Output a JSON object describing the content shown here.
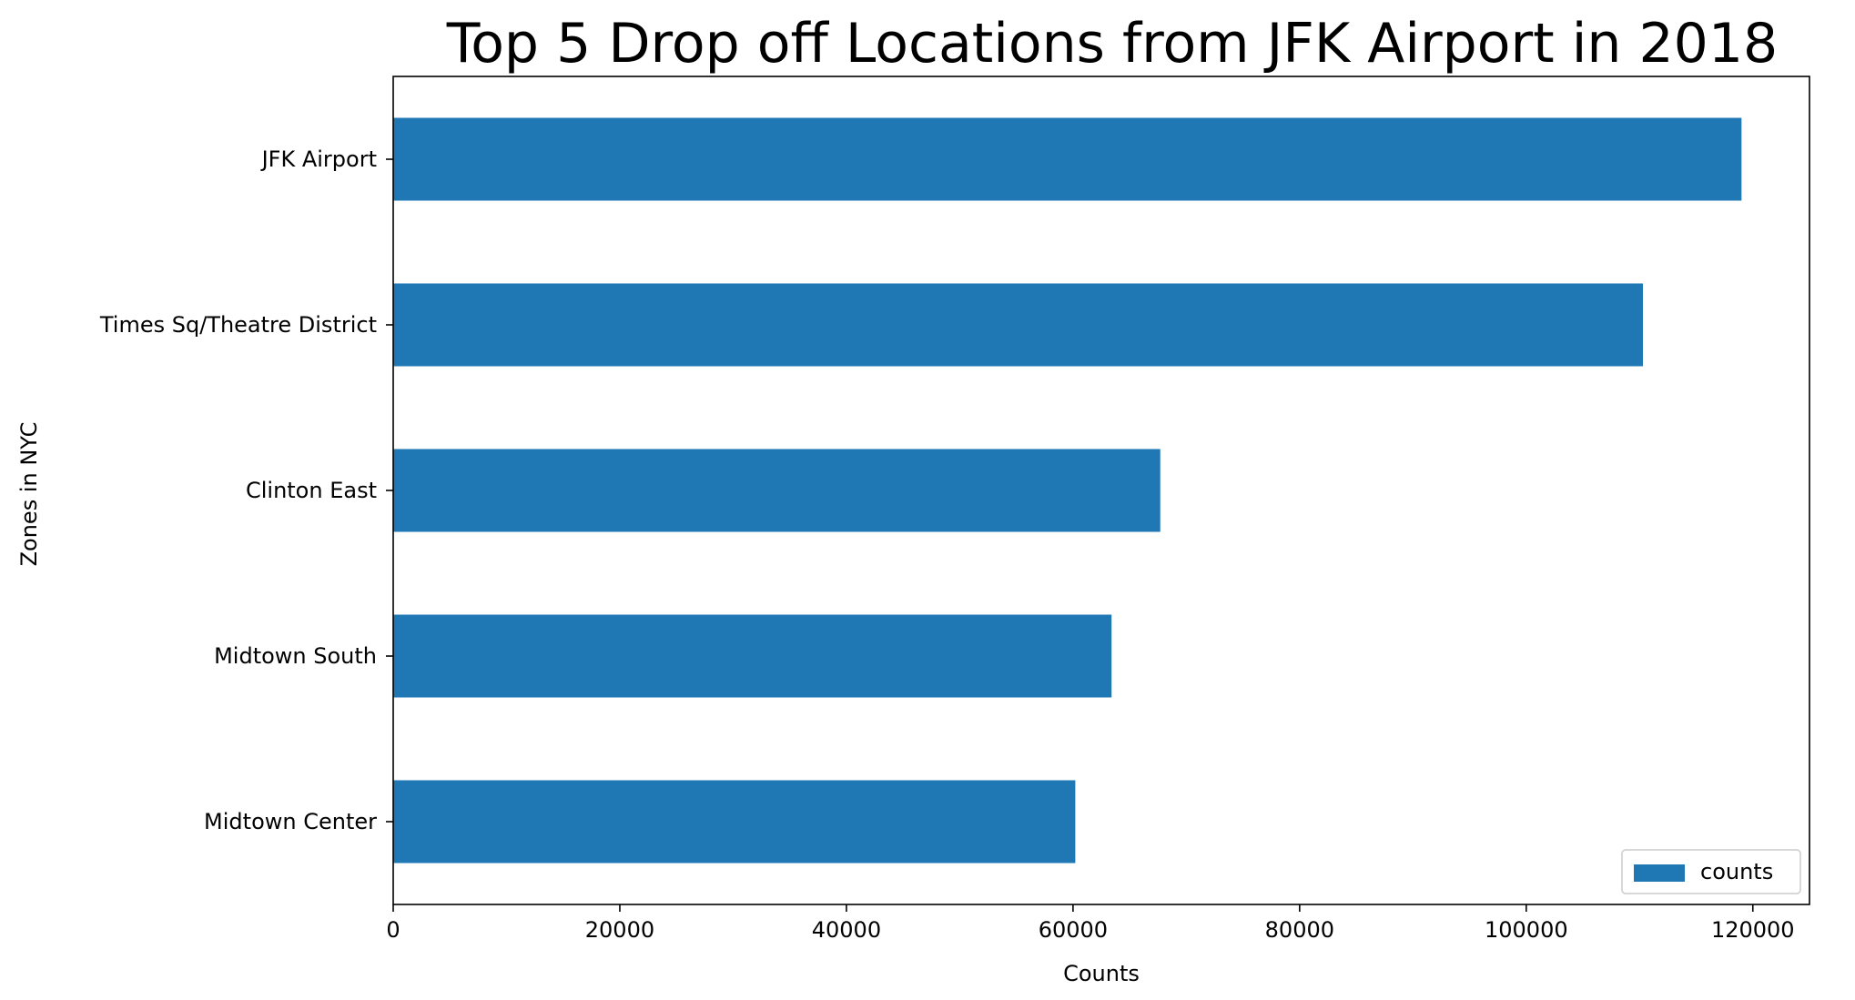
{
  "chart_data": {
    "type": "bar",
    "orientation": "horizontal",
    "title": "Top 5 Drop off Locations from JFK Airport in 2018",
    "xlabel": "Counts",
    "ylabel": "Zones in NYC",
    "categories": [
      "JFK Airport",
      "Times Sq/Theatre District",
      "Clinton East",
      "Midtown South",
      "Midtown Center"
    ],
    "series": [
      {
        "name": "counts",
        "color": "#1f77b4",
        "values": [
          119000,
          110300,
          67700,
          63400,
          60200
        ]
      }
    ],
    "xlim": [
      0,
      125000
    ],
    "xticks": [
      0,
      20000,
      40000,
      60000,
      80000,
      100000,
      120000
    ],
    "xtick_labels": [
      "0",
      "20000",
      "40000",
      "60000",
      "80000",
      "100000",
      "120000"
    ],
    "grid": false,
    "legend_position": "bottom-right"
  }
}
